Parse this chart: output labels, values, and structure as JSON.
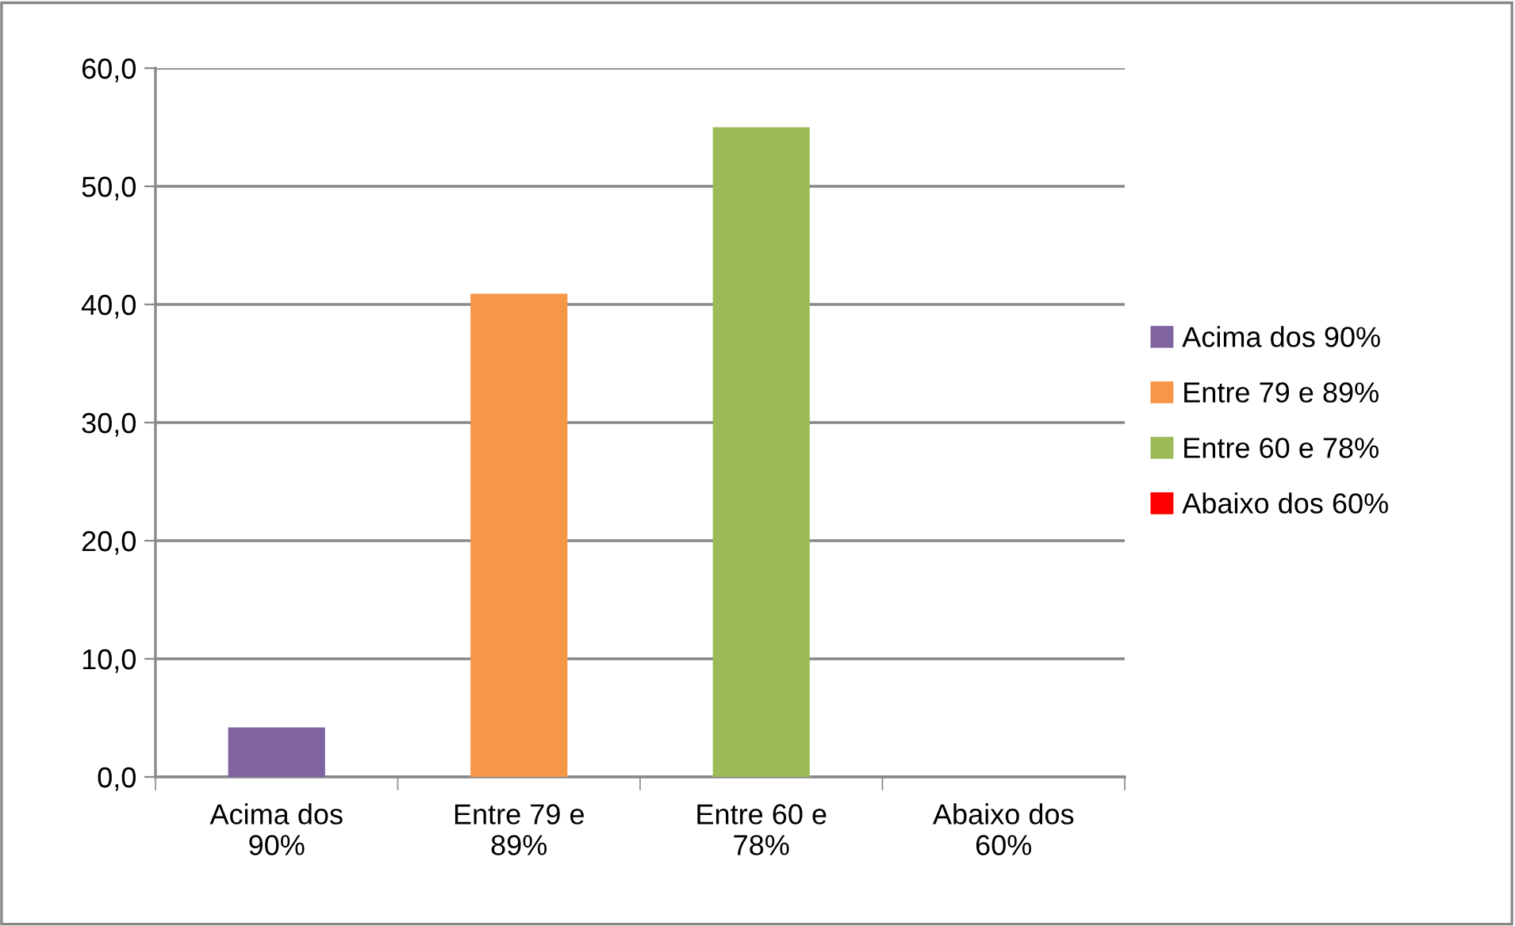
{
  "chart_data": {
    "type": "bar",
    "categories": [
      "Acima dos 90%",
      "Entre 79 e 89%",
      "Entre 60 e 78%",
      "Abaixo dos 60%"
    ],
    "series": [
      {
        "name": "Acima dos 90%",
        "color": "#8064a2",
        "values": [
          4.2,
          null,
          null,
          null
        ]
      },
      {
        "name": "Entre 79 e 89%",
        "color": "#f79646",
        "values": [
          null,
          40.9,
          null,
          null
        ]
      },
      {
        "name": "Entre 60 e 78%",
        "color": "#9bbb59",
        "values": [
          null,
          null,
          55.0,
          null
        ]
      },
      {
        "name": "Abaixo dos 60%",
        "color": "#ff0000",
        "values": [
          null,
          null,
          null,
          0
        ]
      }
    ],
    "ylim": [
      0,
      60
    ],
    "yticks": [
      {
        "value": 0,
        "label": "0,0"
      },
      {
        "value": 10,
        "label": "10,0"
      },
      {
        "value": 20,
        "label": "20,0"
      },
      {
        "value": 30,
        "label": "30,0"
      },
      {
        "value": 40,
        "label": "40,0"
      },
      {
        "value": 50,
        "label": "50,0"
      },
      {
        "value": 60,
        "label": "60,0"
      }
    ],
    "grid": "y",
    "legend": "right"
  }
}
